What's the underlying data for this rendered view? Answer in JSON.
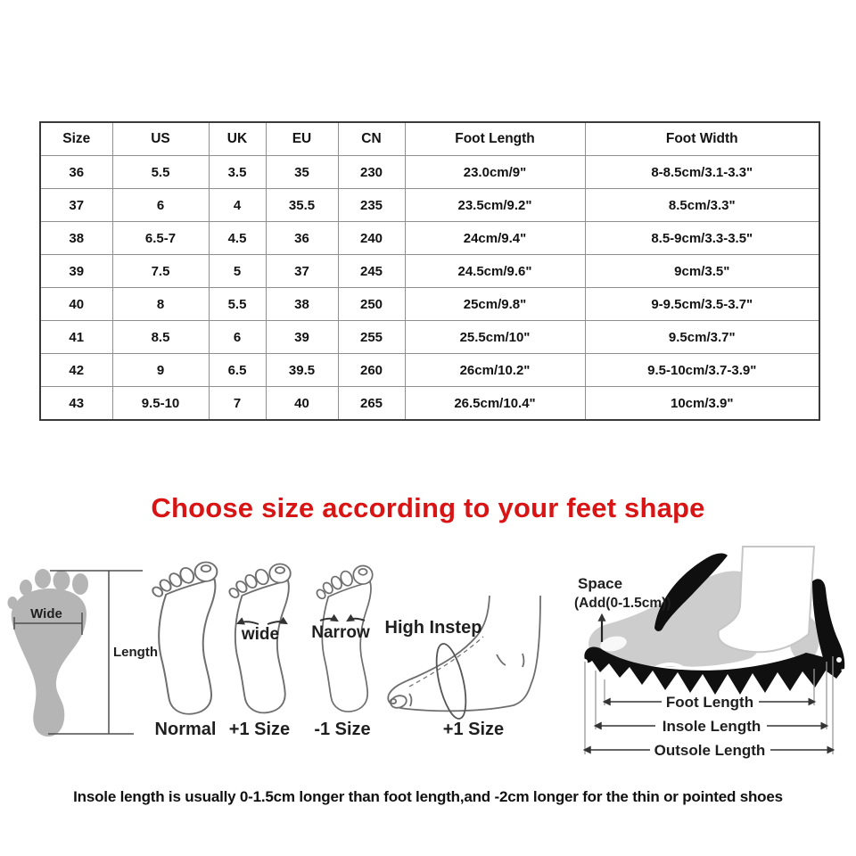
{
  "size_chart": {
    "columns": [
      "Size",
      "US",
      "UK",
      "EU",
      "CN",
      "Foot Length",
      "Foot Width"
    ],
    "rows": [
      [
        "36",
        "5.5",
        "3.5",
        "35",
        "230",
        "23.0cm/9\"",
        "8-8.5cm/3.1-3.3\""
      ],
      [
        "37",
        "6",
        "4",
        "35.5",
        "235",
        "23.5cm/9.2\"",
        "8.5cm/3.3\""
      ],
      [
        "38",
        "6.5-7",
        "4.5",
        "36",
        "240",
        "24cm/9.4\"",
        "8.5-9cm/3.3-3.5\""
      ],
      [
        "39",
        "7.5",
        "5",
        "37",
        "245",
        "24.5cm/9.6\"",
        "9cm/3.5\""
      ],
      [
        "40",
        "8",
        "5.5",
        "38",
        "250",
        "25cm/9.8\"",
        "9-9.5cm/3.5-3.7\""
      ],
      [
        "41",
        "8.5",
        "6",
        "39",
        "255",
        "25.5cm/10\"",
        "9.5cm/3.7\""
      ],
      [
        "42",
        "9",
        "6.5",
        "39.5",
        "260",
        "26cm/10.2\"",
        "9.5-10cm/3.7-3.9\""
      ],
      [
        "43",
        "9.5-10",
        "7",
        "40",
        "265",
        "26.5cm/10.4\"",
        "10cm/3.9\""
      ]
    ]
  },
  "heading": {
    "text": "Choose size according to your feet shape",
    "color": "#d81414"
  },
  "diagram": {
    "footprint": {
      "wide_label": "Wide",
      "length_label": "Length"
    },
    "feet": [
      {
        "top": "",
        "bottom": "Normal"
      },
      {
        "top": "wide",
        "bottom": "+1 Size"
      },
      {
        "top": "Narrow",
        "bottom": "-1 Size"
      },
      {
        "top": "High Instep",
        "bottom": "+1 Size"
      }
    ],
    "shoe": {
      "space_label": "Space",
      "space_sub": "(Add(0-1.5cm))",
      "dims": [
        "Foot Length",
        "Insole Length",
        "Outsole Length"
      ]
    }
  },
  "footnote": {
    "text": "Insole length is usually 0-1.5cm longer than foot length,and -2cm longer for the thin or pointed shoes"
  },
  "colors": {
    "heading_red": "#d81414",
    "footprint_gray": "#b5b5b5",
    "line_art_gray": "#6e6e6e",
    "shoe_black": "#101010",
    "table_grid": "#8f8f8f"
  }
}
